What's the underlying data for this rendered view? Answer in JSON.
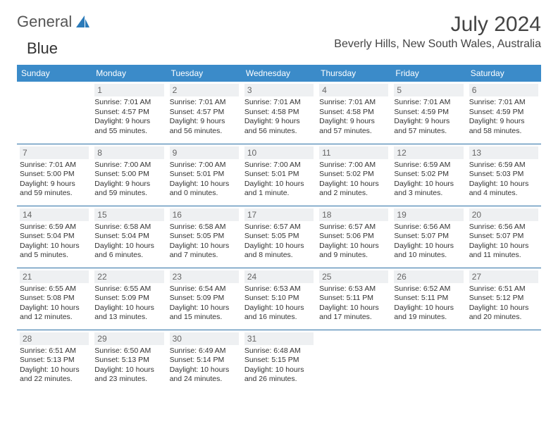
{
  "logo": {
    "word1": "General",
    "word2": "Blue"
  },
  "title": "July 2024",
  "location": "Beverly Hills, New South Wales, Australia",
  "colors": {
    "header_bg": "#3b8bc9",
    "header_fg": "#ffffff",
    "row_border": "#2a6fa5",
    "daynum_bg": "#eef0f2",
    "daynum_fg": "#666666",
    "logo_gray": "#555555",
    "logo_blue": "#2a7ab9",
    "text": "#333333"
  },
  "weekdays": [
    "Sunday",
    "Monday",
    "Tuesday",
    "Wednesday",
    "Thursday",
    "Friday",
    "Saturday"
  ],
  "weeks": [
    [
      {
        "n": "",
        "l": []
      },
      {
        "n": "1",
        "l": [
          "Sunrise: 7:01 AM",
          "Sunset: 4:57 PM",
          "Daylight: 9 hours and 55 minutes."
        ]
      },
      {
        "n": "2",
        "l": [
          "Sunrise: 7:01 AM",
          "Sunset: 4:57 PM",
          "Daylight: 9 hours and 56 minutes."
        ]
      },
      {
        "n": "3",
        "l": [
          "Sunrise: 7:01 AM",
          "Sunset: 4:58 PM",
          "Daylight: 9 hours and 56 minutes."
        ]
      },
      {
        "n": "4",
        "l": [
          "Sunrise: 7:01 AM",
          "Sunset: 4:58 PM",
          "Daylight: 9 hours and 57 minutes."
        ]
      },
      {
        "n": "5",
        "l": [
          "Sunrise: 7:01 AM",
          "Sunset: 4:59 PM",
          "Daylight: 9 hours and 57 minutes."
        ]
      },
      {
        "n": "6",
        "l": [
          "Sunrise: 7:01 AM",
          "Sunset: 4:59 PM",
          "Daylight: 9 hours and 58 minutes."
        ]
      }
    ],
    [
      {
        "n": "7",
        "l": [
          "Sunrise: 7:01 AM",
          "Sunset: 5:00 PM",
          "Daylight: 9 hours and 59 minutes."
        ]
      },
      {
        "n": "8",
        "l": [
          "Sunrise: 7:00 AM",
          "Sunset: 5:00 PM",
          "Daylight: 9 hours and 59 minutes."
        ]
      },
      {
        "n": "9",
        "l": [
          "Sunrise: 7:00 AM",
          "Sunset: 5:01 PM",
          "Daylight: 10 hours and 0 minutes."
        ]
      },
      {
        "n": "10",
        "l": [
          "Sunrise: 7:00 AM",
          "Sunset: 5:01 PM",
          "Daylight: 10 hours and 1 minute."
        ]
      },
      {
        "n": "11",
        "l": [
          "Sunrise: 7:00 AM",
          "Sunset: 5:02 PM",
          "Daylight: 10 hours and 2 minutes."
        ]
      },
      {
        "n": "12",
        "l": [
          "Sunrise: 6:59 AM",
          "Sunset: 5:02 PM",
          "Daylight: 10 hours and 3 minutes."
        ]
      },
      {
        "n": "13",
        "l": [
          "Sunrise: 6:59 AM",
          "Sunset: 5:03 PM",
          "Daylight: 10 hours and 4 minutes."
        ]
      }
    ],
    [
      {
        "n": "14",
        "l": [
          "Sunrise: 6:59 AM",
          "Sunset: 5:04 PM",
          "Daylight: 10 hours and 5 minutes."
        ]
      },
      {
        "n": "15",
        "l": [
          "Sunrise: 6:58 AM",
          "Sunset: 5:04 PM",
          "Daylight: 10 hours and 6 minutes."
        ]
      },
      {
        "n": "16",
        "l": [
          "Sunrise: 6:58 AM",
          "Sunset: 5:05 PM",
          "Daylight: 10 hours and 7 minutes."
        ]
      },
      {
        "n": "17",
        "l": [
          "Sunrise: 6:57 AM",
          "Sunset: 5:05 PM",
          "Daylight: 10 hours and 8 minutes."
        ]
      },
      {
        "n": "18",
        "l": [
          "Sunrise: 6:57 AM",
          "Sunset: 5:06 PM",
          "Daylight: 10 hours and 9 minutes."
        ]
      },
      {
        "n": "19",
        "l": [
          "Sunrise: 6:56 AM",
          "Sunset: 5:07 PM",
          "Daylight: 10 hours and 10 minutes."
        ]
      },
      {
        "n": "20",
        "l": [
          "Sunrise: 6:56 AM",
          "Sunset: 5:07 PM",
          "Daylight: 10 hours and 11 minutes."
        ]
      }
    ],
    [
      {
        "n": "21",
        "l": [
          "Sunrise: 6:55 AM",
          "Sunset: 5:08 PM",
          "Daylight: 10 hours and 12 minutes."
        ]
      },
      {
        "n": "22",
        "l": [
          "Sunrise: 6:55 AM",
          "Sunset: 5:09 PM",
          "Daylight: 10 hours and 13 minutes."
        ]
      },
      {
        "n": "23",
        "l": [
          "Sunrise: 6:54 AM",
          "Sunset: 5:09 PM",
          "Daylight: 10 hours and 15 minutes."
        ]
      },
      {
        "n": "24",
        "l": [
          "Sunrise: 6:53 AM",
          "Sunset: 5:10 PM",
          "Daylight: 10 hours and 16 minutes."
        ]
      },
      {
        "n": "25",
        "l": [
          "Sunrise: 6:53 AM",
          "Sunset: 5:11 PM",
          "Daylight: 10 hours and 17 minutes."
        ]
      },
      {
        "n": "26",
        "l": [
          "Sunrise: 6:52 AM",
          "Sunset: 5:11 PM",
          "Daylight: 10 hours and 19 minutes."
        ]
      },
      {
        "n": "27",
        "l": [
          "Sunrise: 6:51 AM",
          "Sunset: 5:12 PM",
          "Daylight: 10 hours and 20 minutes."
        ]
      }
    ],
    [
      {
        "n": "28",
        "l": [
          "Sunrise: 6:51 AM",
          "Sunset: 5:13 PM",
          "Daylight: 10 hours and 22 minutes."
        ]
      },
      {
        "n": "29",
        "l": [
          "Sunrise: 6:50 AM",
          "Sunset: 5:13 PM",
          "Daylight: 10 hours and 23 minutes."
        ]
      },
      {
        "n": "30",
        "l": [
          "Sunrise: 6:49 AM",
          "Sunset: 5:14 PM",
          "Daylight: 10 hours and 24 minutes."
        ]
      },
      {
        "n": "31",
        "l": [
          "Sunrise: 6:48 AM",
          "Sunset: 5:15 PM",
          "Daylight: 10 hours and 26 minutes."
        ]
      },
      {
        "n": "",
        "l": []
      },
      {
        "n": "",
        "l": []
      },
      {
        "n": "",
        "l": []
      }
    ]
  ]
}
